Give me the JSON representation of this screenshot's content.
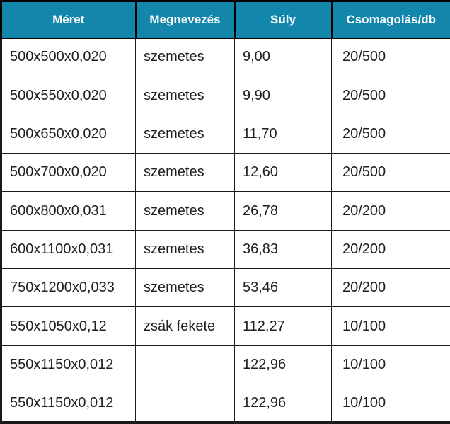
{
  "table": {
    "headers": [
      "Méret",
      "Megnevezés",
      "Súly",
      "Csomagolás/db"
    ],
    "column_keys": [
      "meret",
      "megnevezes",
      "suly",
      "csomagolas-db"
    ],
    "rows": [
      [
        "500x500x0,020",
        "szemetes",
        "9,00",
        "20/500"
      ],
      [
        "500x550x0,020",
        "szemetes",
        "9,90",
        "20/500"
      ],
      [
        "500x650x0,020",
        "szemetes",
        "11,70",
        "20/500"
      ],
      [
        "500x700x0,020",
        "szemetes",
        "12,60",
        "20/500"
      ],
      [
        "600x800x0,031",
        "szemetes",
        "26,78",
        "20/200"
      ],
      [
        "600x1100x0,031",
        "szemetes",
        "36,83",
        "20/200"
      ],
      [
        "750x1200x0,033",
        "szemetes",
        "53,46",
        "20/200"
      ],
      [
        "550x1050x0,12",
        "zsák fekete",
        "112,27",
        "10/100"
      ],
      [
        "550x1150x0,012",
        "",
        "122,96",
        "10/100"
      ],
      [
        "550x1150x0,012",
        "",
        "122,96",
        "10/100"
      ]
    ],
    "colors": {
      "header_bg": "#1386ac",
      "header_text": "#ffffff",
      "body_text": "#1f1f1f",
      "border": "#000000"
    }
  }
}
